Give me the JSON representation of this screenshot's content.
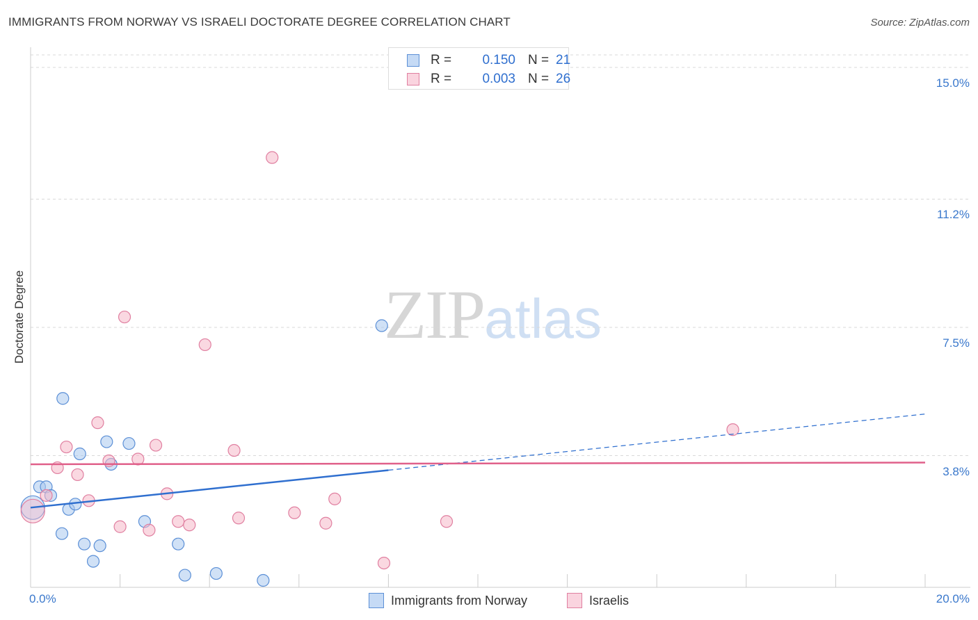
{
  "header": {
    "title": "IMMIGRANTS FROM NORWAY VS ISRAELI DOCTORATE DEGREE CORRELATION CHART",
    "source": "Source: ZipAtlas.com"
  },
  "watermark": {
    "zip": "ZIP",
    "atlas": "atlas"
  },
  "legend": {
    "r_label": "R =",
    "n_label": "N =",
    "rows": [
      {
        "r": "0.150",
        "n": "21"
      },
      {
        "r": "0.003",
        "n": "26"
      }
    ]
  },
  "axes": {
    "x_min_label": "0.0%",
    "x_max_label": "20.0%",
    "y_ticks": [
      "15.0%",
      "11.2%",
      "7.5%",
      "3.8%"
    ]
  },
  "chart_data": {
    "type": "scatter",
    "title": "IMMIGRANTS FROM NORWAY VS ISRAELI DOCTORATE DEGREE CORRELATION CHART",
    "xlabel": "",
    "ylabel": "Doctorate Degree",
    "xlim": [
      0,
      20
    ],
    "ylim": [
      0,
      15.4
    ],
    "y_gridlines": [
      3.8,
      7.5,
      11.2,
      15.0
    ],
    "colors": {
      "norway_fill": "#a9c8ef",
      "norway_stroke": "#5b8fd6",
      "norway_line": "#2f6fcf",
      "israelis_fill": "#f5b8c9",
      "israelis_stroke": "#e07fa0",
      "israelis_line": "#e0608a",
      "grid": "#d8d8d8",
      "axis": "#cccccc",
      "tick_text": "#3a78cc"
    },
    "series": [
      {
        "name": "Immigrants from Norway",
        "r": 0.15,
        "n": 21,
        "trend": {
          "x0": 0,
          "y0": 2.3,
          "x_solid_end": 8.0,
          "x1": 20,
          "y1": 5.0
        },
        "points": [
          {
            "x": 0.05,
            "y": 2.3,
            "big": true
          },
          {
            "x": 0.2,
            "y": 2.9
          },
          {
            "x": 0.35,
            "y": 2.9
          },
          {
            "x": 0.45,
            "y": 2.65
          },
          {
            "x": 0.7,
            "y": 1.55
          },
          {
            "x": 0.72,
            "y": 5.45
          },
          {
            "x": 0.85,
            "y": 2.25
          },
          {
            "x": 1.0,
            "y": 2.4
          },
          {
            "x": 1.1,
            "y": 3.85
          },
          {
            "x": 1.2,
            "y": 1.25
          },
          {
            "x": 1.4,
            "y": 0.75
          },
          {
            "x": 1.55,
            "y": 1.2
          },
          {
            "x": 1.7,
            "y": 4.2
          },
          {
            "x": 1.8,
            "y": 3.55
          },
          {
            "x": 2.2,
            "y": 4.15
          },
          {
            "x": 2.55,
            "y": 1.9
          },
          {
            "x": 3.3,
            "y": 1.25
          },
          {
            "x": 3.45,
            "y": 0.35
          },
          {
            "x": 4.15,
            "y": 0.4
          },
          {
            "x": 5.2,
            "y": 0.2
          },
          {
            "x": 7.85,
            "y": 7.55
          }
        ]
      },
      {
        "name": "Israelis",
        "r": 0.003,
        "n": 26,
        "trend": {
          "x0": 0,
          "y0": 3.55,
          "x1": 20,
          "y1": 3.6
        },
        "points": [
          {
            "x": 0.05,
            "y": 2.2,
            "big": true
          },
          {
            "x": 0.35,
            "y": 2.65
          },
          {
            "x": 0.6,
            "y": 3.45
          },
          {
            "x": 0.8,
            "y": 4.05
          },
          {
            "x": 1.05,
            "y": 3.25
          },
          {
            "x": 1.3,
            "y": 2.5
          },
          {
            "x": 1.5,
            "y": 4.75
          },
          {
            "x": 1.75,
            "y": 3.65
          },
          {
            "x": 2.0,
            "y": 1.75
          },
          {
            "x": 2.1,
            "y": 7.8
          },
          {
            "x": 2.4,
            "y": 3.7
          },
          {
            "x": 2.65,
            "y": 1.65
          },
          {
            "x": 2.8,
            "y": 4.1
          },
          {
            "x": 3.05,
            "y": 2.7
          },
          {
            "x": 3.3,
            "y": 1.9
          },
          {
            "x": 3.55,
            "y": 1.8
          },
          {
            "x": 3.9,
            "y": 7.0
          },
          {
            "x": 4.55,
            "y": 3.95
          },
          {
            "x": 4.65,
            "y": 2.0
          },
          {
            "x": 5.4,
            "y": 12.4
          },
          {
            "x": 5.9,
            "y": 2.15
          },
          {
            "x": 6.6,
            "y": 1.85
          },
          {
            "x": 6.8,
            "y": 2.55
          },
          {
            "x": 7.9,
            "y": 0.7
          },
          {
            "x": 9.3,
            "y": 1.9
          },
          {
            "x": 15.7,
            "y": 4.55
          }
        ]
      }
    ]
  }
}
